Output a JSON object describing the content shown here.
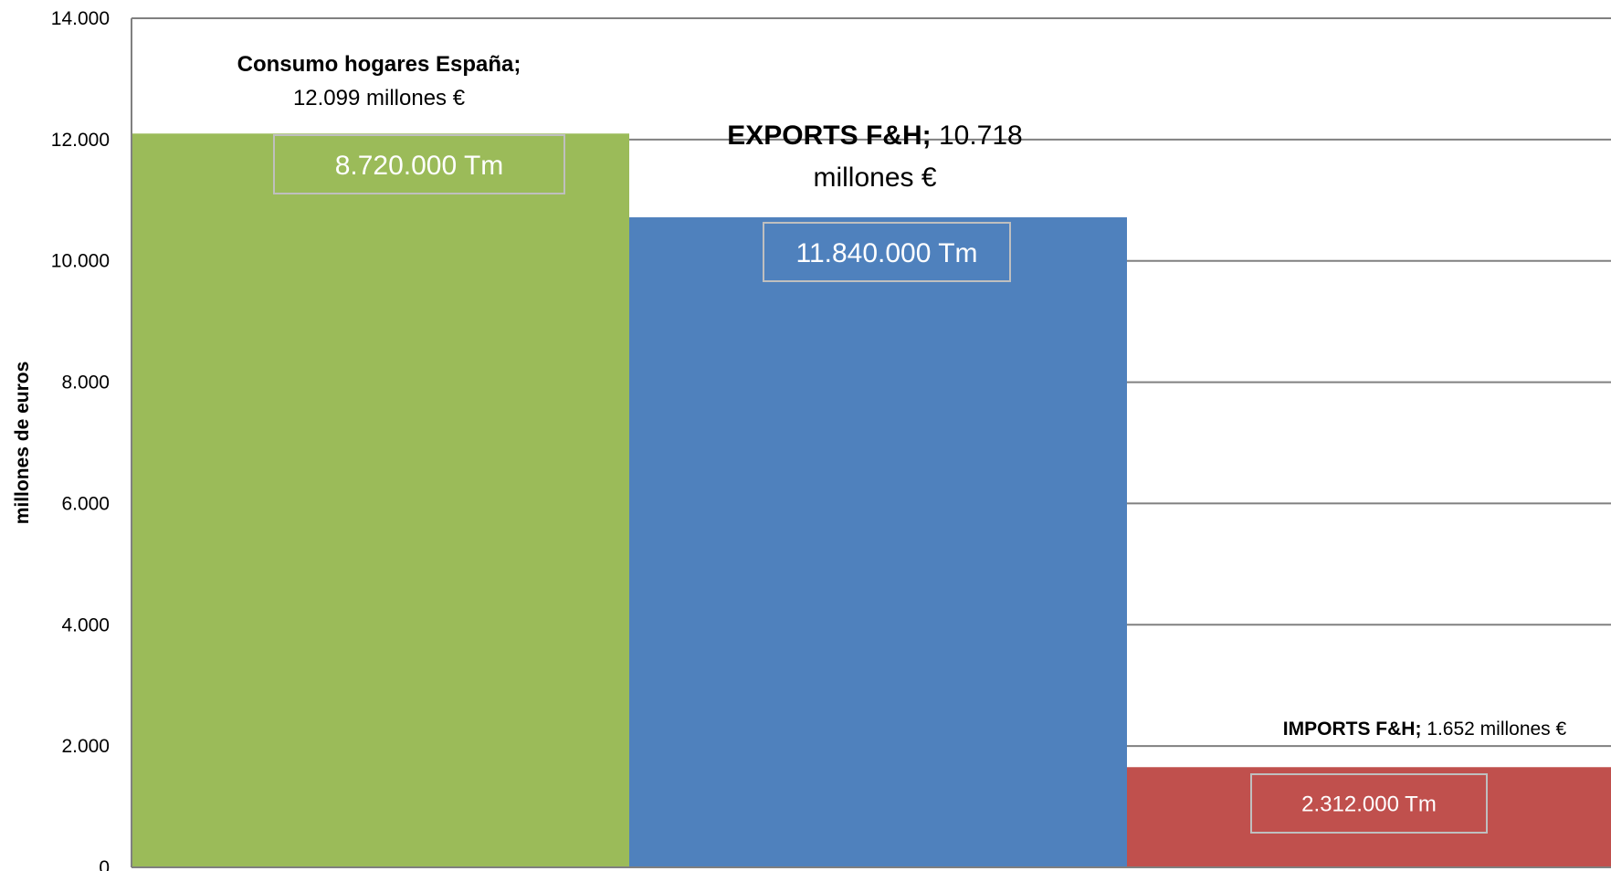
{
  "chart_data": {
    "type": "bar",
    "ylabel": "millones de euros",
    "ylim": [
      0,
      14000
    ],
    "yticks": [
      0,
      2000,
      4000,
      6000,
      8000,
      10000,
      12000,
      14000
    ],
    "ytick_labels": [
      "0",
      "2.000",
      "4.000",
      "6.000",
      "8.000",
      "10.000",
      "12.000",
      "14.000"
    ],
    "grid": true,
    "bars": [
      {
        "category": "Consumo hogares España",
        "value": 12099,
        "color": "#9BBB59",
        "label_bold": "Consumo hogares España;",
        "label_rest": "12.099 millones €",
        "box_text": "8.720.000 Tm"
      },
      {
        "category": "EXPORTS F&H",
        "value": 10718,
        "color": "#4F81BD",
        "label_bold": "EXPORTS F&H;",
        "label_rest": "10.718 millones €",
        "box_text": "11.840.000 Tm"
      },
      {
        "category": "IMPORTS F&H",
        "value": 1652,
        "color": "#C0504D",
        "label_bold": "IMPORTS F&H;",
        "label_rest": "1.652 millones €",
        "box_text": "2.312.000 Tm"
      }
    ]
  }
}
